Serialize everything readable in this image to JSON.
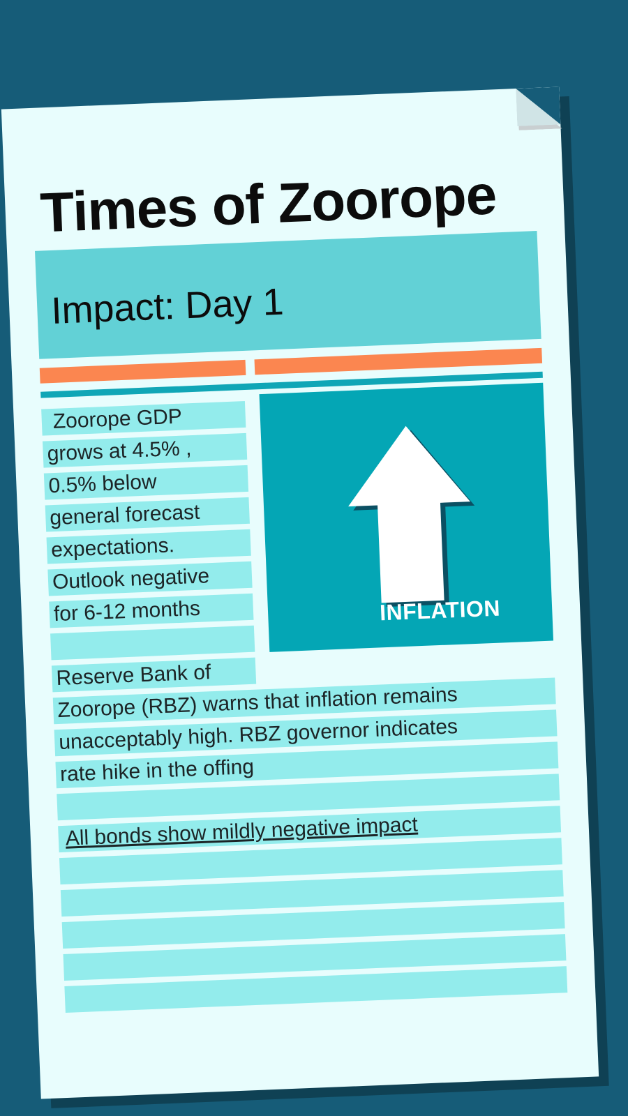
{
  "newspaper": {
    "masthead": "Times of Zoorope",
    "headline": "Impact: Day 1"
  },
  "story_gdp": {
    "lines": [
      "Zoorope GDP",
      "grows at 4.5% ,",
      "0.5% below",
      "general forecast",
      "expectations.",
      "Outlook negative",
      "for 6-12 months"
    ]
  },
  "inflation_graphic": {
    "icon": "arrow-up-icon",
    "label": "INFLATION"
  },
  "story_rbz": {
    "lines": [
      "Reserve Bank of",
      "Zoorope (RBZ) warns that inflation remains",
      "unacceptably high. RBZ governor indicates",
      "rate hike in the offing"
    ]
  },
  "bond_impact": {
    "text": "All bonds show mildly negative impact"
  },
  "colors": {
    "background": "#165c78",
    "paper": "#e8fdfd",
    "headline_band": "#62d1d6",
    "accent_orange": "#fb8650",
    "accent_teal": "#10a6b6",
    "text_strip": "#93ecec",
    "inflation_box": "#04a6b5"
  }
}
